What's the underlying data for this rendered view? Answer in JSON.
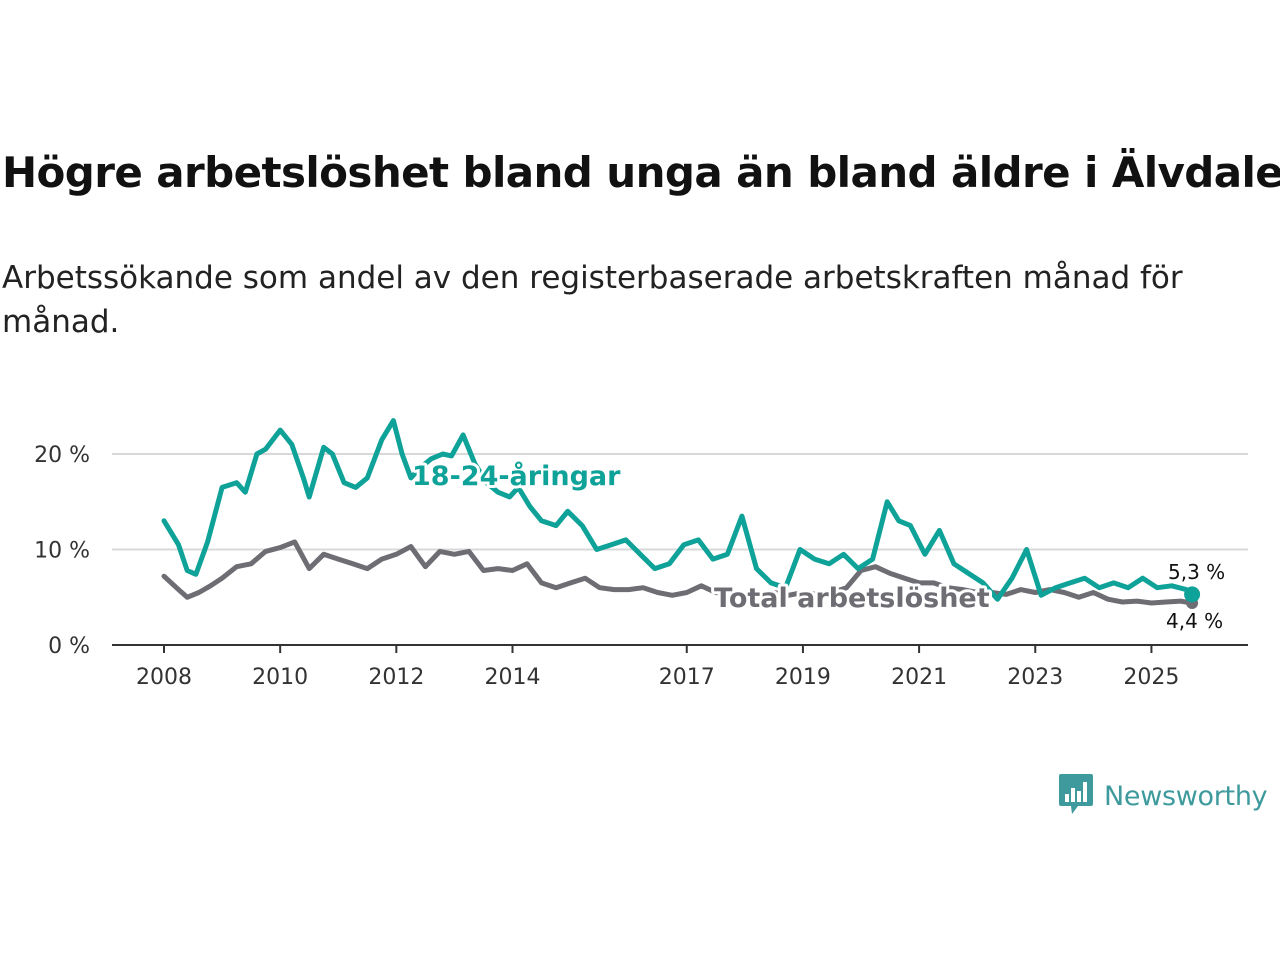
{
  "title": "Högre arbetslöshet bland unga än bland äldre i Älvdalen",
  "subtitle": "Arbetssökande som andel av den registerbaserade arbetskraften månad för månad.",
  "brand": {
    "name": "Newsworthy",
    "icon": "newsworthy-logo-icon"
  },
  "colors": {
    "youth": "#0fa298",
    "total": "#6f6d74",
    "grid": "#d9d9d9",
    "axis": "#333333"
  },
  "chart_data": {
    "type": "line",
    "title": "Högre arbetslöshet bland unga än bland äldre i Älvdalen",
    "xlabel": "",
    "ylabel": "",
    "xlim": [
      2007.95,
      2025.75
    ],
    "ylim": [
      0,
      22
    ],
    "grid": true,
    "x_ticks": [
      2008,
      2010,
      2012,
      2014,
      2017,
      2019,
      2021,
      2023,
      2025
    ],
    "x_tick_labels": [
      "2008",
      "2010",
      "2012",
      "2014",
      "2017",
      "2019",
      "2021",
      "2023",
      "2025"
    ],
    "y_ticks": [
      0,
      10,
      20
    ],
    "y_tick_labels": [
      "0 %",
      "10 %",
      "20 %"
    ],
    "series": [
      {
        "name": "18-24-åringar",
        "label": "18-24-åringar",
        "color": "#0fa298",
        "end_label": "5,3 %",
        "x": [
          2008.0,
          2008.25,
          2008.4,
          2008.55,
          2008.75,
          2009.0,
          2009.25,
          2009.4,
          2009.6,
          2009.75,
          2010.0,
          2010.2,
          2010.4,
          2010.5,
          2010.75,
          2010.9,
          2011.1,
          2011.3,
          2011.5,
          2011.75,
          2011.95,
          2012.1,
          2012.25,
          2012.4,
          2012.6,
          2012.8,
          2012.95,
          2013.15,
          2013.35,
          2013.55,
          2013.75,
          2013.95,
          2014.1,
          2014.3,
          2014.5,
          2014.75,
          2014.95,
          2015.2,
          2015.45,
          2015.7,
          2015.95,
          2016.2,
          2016.45,
          2016.7,
          2016.95,
          2017.2,
          2017.45,
          2017.7,
          2017.95,
          2018.2,
          2018.45,
          2018.7,
          2018.95,
          2019.2,
          2019.45,
          2019.7,
          2019.95,
          2020.2,
          2020.45,
          2020.65,
          2020.85,
          2021.1,
          2021.35,
          2021.6,
          2021.85,
          2022.1,
          2022.35,
          2022.6,
          2022.85,
          2023.1,
          2023.35,
          2023.6,
          2023.85,
          2024.1,
          2024.35,
          2024.6,
          2024.85,
          2025.1,
          2025.35,
          2025.6,
          2025.7
        ],
        "y": [
          13.0,
          10.5,
          7.8,
          7.4,
          10.8,
          16.5,
          17.0,
          16.0,
          20.0,
          20.5,
          22.5,
          21.0,
          17.5,
          15.5,
          20.7,
          20.0,
          17.0,
          16.5,
          17.5,
          21.5,
          23.5,
          20.0,
          17.5,
          18.5,
          19.5,
          20.0,
          19.8,
          22.0,
          19.0,
          17.0,
          16.0,
          15.5,
          16.5,
          14.5,
          13.0,
          12.5,
          14.0,
          12.5,
          10.0,
          10.5,
          11.0,
          9.5,
          8.0,
          8.5,
          10.5,
          11.0,
          9.0,
          9.5,
          13.5,
          8.0,
          6.5,
          6.0,
          10.0,
          9.0,
          8.5,
          9.5,
          8.0,
          9.0,
          15.0,
          13.0,
          12.5,
          9.5,
          12.0,
          8.5,
          7.5,
          6.5,
          4.8,
          7.0,
          10.0,
          5.2,
          6.0,
          6.5,
          7.0,
          6.0,
          6.5,
          6.0,
          7.0,
          6.0,
          6.2,
          5.8,
          5.3
        ]
      },
      {
        "name": "Total arbetslöshet",
        "label": "Total arbetslöshet",
        "color": "#6f6d74",
        "end_label": "4,4 %",
        "x": [
          2008.0,
          2008.25,
          2008.4,
          2008.6,
          2008.8,
          2009.0,
          2009.25,
          2009.5,
          2009.75,
          2010.0,
          2010.25,
          2010.5,
          2010.75,
          2011.0,
          2011.25,
          2011.5,
          2011.75,
          2012.0,
          2012.25,
          2012.5,
          2012.75,
          2013.0,
          2013.25,
          2013.5,
          2013.75,
          2014.0,
          2014.25,
          2014.5,
          2014.75,
          2015.0,
          2015.25,
          2015.5,
          2015.75,
          2016.0,
          2016.25,
          2016.5,
          2016.75,
          2017.0,
          2017.25,
          2017.5,
          2017.75,
          2018.0,
          2018.25,
          2018.5,
          2018.75,
          2019.0,
          2019.25,
          2019.5,
          2019.75,
          2020.0,
          2020.25,
          2020.5,
          2020.75,
          2021.0,
          2021.25,
          2021.5,
          2021.75,
          2022.0,
          2022.25,
          2022.5,
          2022.75,
          2023.0,
          2023.25,
          2023.5,
          2023.75,
          2024.0,
          2024.25,
          2024.5,
          2024.75,
          2025.0,
          2025.25,
          2025.5,
          2025.7
        ],
        "y": [
          7.2,
          5.8,
          5.0,
          5.5,
          6.2,
          7.0,
          8.2,
          8.5,
          9.8,
          10.2,
          10.8,
          8.0,
          9.5,
          9.0,
          8.5,
          8.0,
          9.0,
          9.5,
          10.3,
          8.2,
          9.8,
          9.5,
          9.8,
          7.8,
          8.0,
          7.8,
          8.5,
          6.5,
          6.0,
          6.5,
          7.0,
          6.0,
          5.8,
          5.8,
          6.0,
          5.5,
          5.2,
          5.5,
          6.2,
          5.5,
          5.3,
          5.0,
          5.2,
          5.5,
          5.2,
          5.5,
          5.3,
          5.5,
          6.0,
          7.8,
          8.2,
          7.5,
          7.0,
          6.5,
          6.5,
          6.0,
          5.8,
          5.5,
          5.5,
          5.3,
          5.8,
          5.5,
          5.8,
          5.5,
          5.0,
          5.5,
          4.8,
          4.5,
          4.6,
          4.4,
          4.5,
          4.6,
          4.4
        ]
      }
    ]
  }
}
